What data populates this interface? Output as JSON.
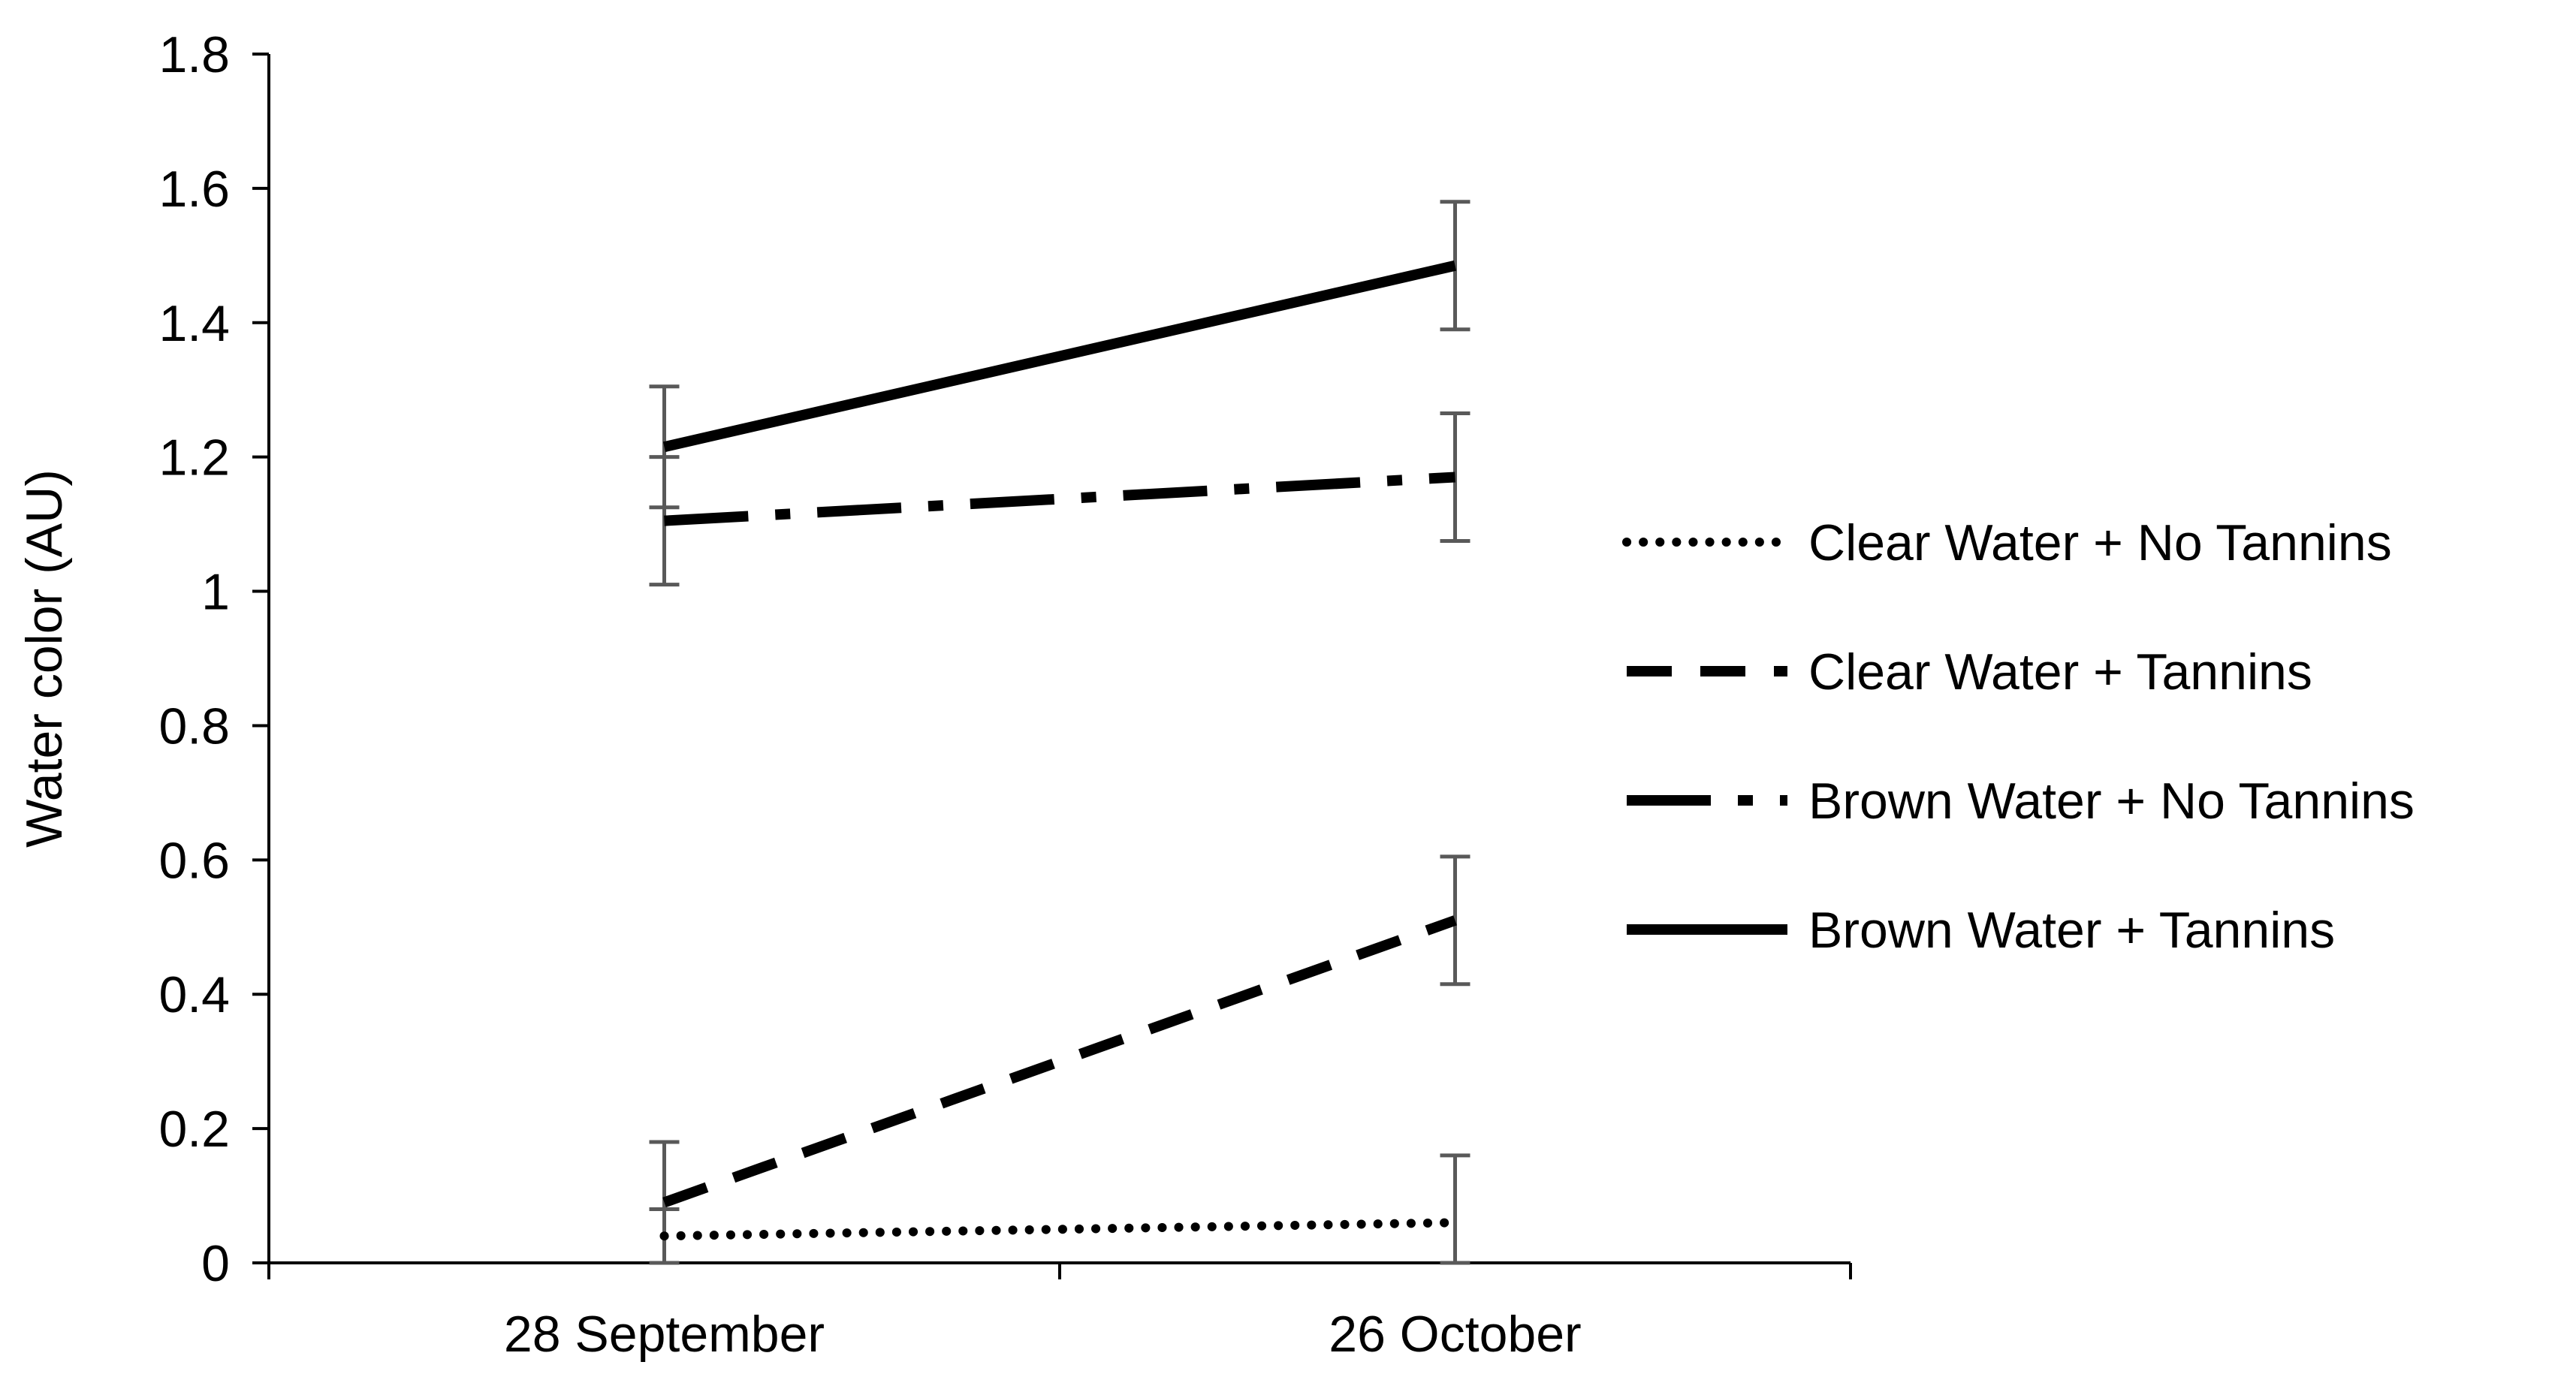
{
  "chart_data": {
    "type": "line",
    "title": "",
    "xlabel": "",
    "ylabel": "Water color (AU)",
    "categories": [
      "28 September",
      "26 October"
    ],
    "ylim": [
      0,
      1.8
    ],
    "yticks": [
      "0",
      "0.2",
      "0.4",
      "0.6",
      "0.8",
      "1",
      "1.2",
      "1.4",
      "1.6",
      "1.8"
    ],
    "grid": false,
    "legend_position": "right",
    "series": [
      {
        "name": "Clear Water + No Tannins",
        "style": "dotted",
        "values": [
          0.04,
          0.06
        ],
        "errors": [
          0.04,
          0.1
        ]
      },
      {
        "name": "Clear Water + Tannins",
        "style": "dashed",
        "values": [
          0.09,
          0.51
        ],
        "errors": [
          0.09,
          0.095
        ]
      },
      {
        "name": "Brown Water + No Tannins",
        "style": "long-dash-dot",
        "values": [
          1.105,
          1.17
        ],
        "errors": [
          0.095,
          0.095
        ]
      },
      {
        "name": "Brown Water + Tannins",
        "style": "solid",
        "values": [
          1.215,
          1.485
        ],
        "errors": [
          0.09,
          0.095
        ]
      }
    ],
    "colors": {
      "line": "#000000",
      "error_bar": "#595959",
      "axis": "#000000"
    }
  }
}
